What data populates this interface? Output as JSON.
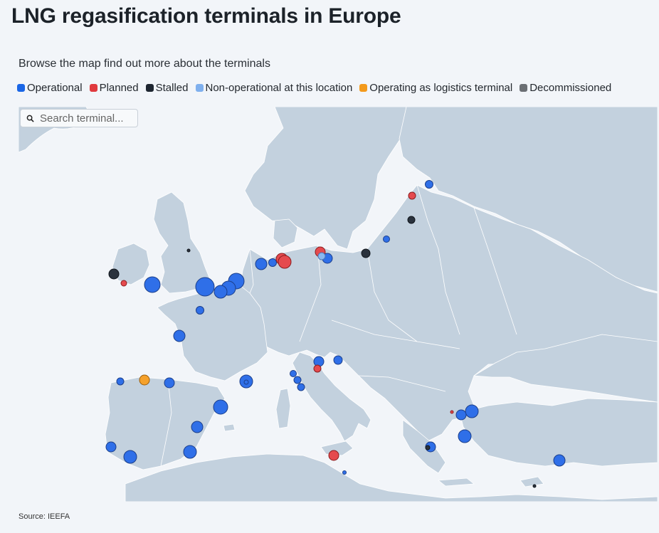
{
  "title": "LNG regasification terminals in Europe",
  "subtitle": "Browse the map find out more about the terminals",
  "legend": [
    {
      "label": "Operational",
      "color": "#1a66e6"
    },
    {
      "label": "Planned",
      "color": "#e03a3e"
    },
    {
      "label": "Stalled",
      "color": "#1e2631"
    },
    {
      "label": "Non-operational at this location",
      "color": "#7fb0ee"
    },
    {
      "label": "Operating as logistics terminal",
      "color": "#f39a1c"
    },
    {
      "label": "Decommissioned",
      "color": "#6b6f74"
    }
  ],
  "search": {
    "placeholder": "Search terminal..."
  },
  "source": "Source: IEEFA",
  "colors": {
    "land": "#c3d1de",
    "sea": "#f2f5f9",
    "border": "#ffffff"
  }
}
